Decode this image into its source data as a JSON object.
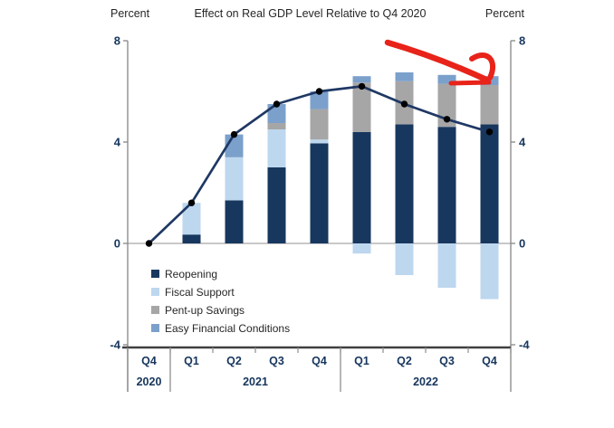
{
  "header": {
    "title": "Effect on Real GDP Level Relative to Q4 2020",
    "unit_left": "Percent",
    "unit_right": "Percent"
  },
  "chart_data": {
    "type": "bar",
    "subtype": "stacked-bars-with-total-line",
    "title": "Effect on Real GDP Level Relative to Q4 2020",
    "ylabel_left": "Percent",
    "ylabel_right": "Percent",
    "ylim": [
      -4,
      8
    ],
    "yticks": [
      8,
      4,
      0,
      -4
    ],
    "grid": "zero-baseline-only",
    "legend_position": "inside-lower-left",
    "categories": [
      "Q4 2020",
      "Q1 2021",
      "Q2 2021",
      "Q3 2021",
      "Q4 2021",
      "Q1 2022",
      "Q2 2022",
      "Q3 2022",
      "Q4 2022"
    ],
    "x_quarter_labels": [
      "Q4",
      "Q1",
      "Q2",
      "Q3",
      "Q4",
      "Q1",
      "Q2",
      "Q3",
      "Q4"
    ],
    "year_groups": [
      {
        "label": "2020",
        "span": 1
      },
      {
        "label": "2021",
        "span": 4
      },
      {
        "label": "2022",
        "span": 4
      }
    ],
    "series": [
      {
        "name": "Reopening",
        "color": "#17375E",
        "values": [
          0,
          0.35,
          1.7,
          3.0,
          3.95,
          4.4,
          4.7,
          4.6,
          4.7
        ]
      },
      {
        "name": "Fiscal Support",
        "color": "#BDD7EE",
        "values": [
          0,
          1.25,
          1.7,
          1.5,
          0.15,
          -0.4,
          -1.25,
          -1.75,
          -2.2
        ]
      },
      {
        "name": "Pent-up Savings",
        "color": "#A6A6A6",
        "values": [
          0,
          0,
          0,
          0.25,
          1.2,
          1.95,
          1.7,
          1.7,
          1.55
        ]
      },
      {
        "name": "Easy Financial Conditions",
        "color": "#7BA0CB",
        "values": [
          0,
          0,
          0.9,
          0.75,
          0.7,
          0.25,
          0.35,
          0.35,
          0.35
        ]
      }
    ],
    "line_series": {
      "name": "Total effect (line)",
      "color": "#1F3864",
      "marker_color": "#000000",
      "values": [
        0,
        1.6,
        4.3,
        5.5,
        6.0,
        6.2,
        5.5,
        4.9,
        4.4
      ]
    }
  },
  "annotation": {
    "shape": "hand-drawn-arrow",
    "color": "#E8231A",
    "points_to": "Q4 2022 bar top"
  }
}
